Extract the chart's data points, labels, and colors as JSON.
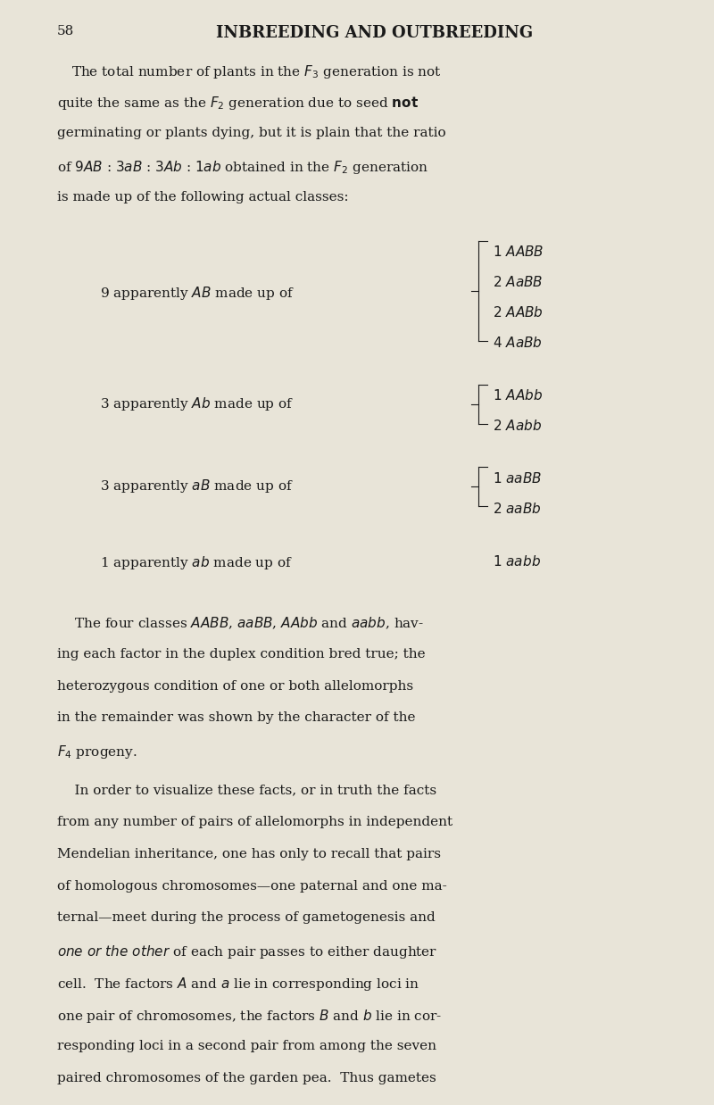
{
  "bg_color": "#e8e4d8",
  "page_number": "58",
  "header": "INBREEDING AND OUTBREEDING",
  "paragraph1": "The total number of plants in the $F_3$ generation is not\nquite the same as the $F_2$ generation due to seed not\ngerminating or plants dying, but it is plain that the ratio\nof $9AB$ : $3aB$ : $3Ab$ : $1ab$ obtained in the $F_2$ generation\nis made up of the following actual classes:",
  "table_rows": [
    {
      "left": "9 apparently $AB$ made up of",
      "brace": true,
      "right": [
        "1 $AABB$",
        "2 $AaBB$",
        "2 $AABb$",
        "4 $AaBb$"
      ]
    },
    {
      "left": "3 apparently $Ab$ made up of",
      "brace": true,
      "right": [
        "1 $AAbb$",
        "2 $Aabb$"
      ]
    },
    {
      "left": "3 apparently $aB$ made up of",
      "brace": true,
      "right": [
        "1 $aaBB$",
        "2 $aaBb$"
      ]
    },
    {
      "left": "1 apparently $ab$ made up of",
      "brace": false,
      "right": [
        "1 $aabb$"
      ]
    }
  ],
  "paragraph2": "The four classes $AABB$, $aaBB$, $AAbb$ and $aabb$, hav-\ning each factor in the duplex condition bred true; the\nheterozygous condition of one or both allelomorphs\nin the remainder was shown by the character of the\n$F_4$ progeny.",
  "paragraph3": "In order to visualize these facts, or in truth the facts\nfrom any number of pairs of allelomorphs in independent\nMendelian inheritance, one has only to recall that pairs\nof homologous chromosomes—one paternal and one ma-\nternal—meet during the process of gametogenesis and\n$one\\ or\\ the\\ other$ of each pair passes to either daughter\ncell.  The factors $A$ and $a$ lie in corresponding loci in\none pair of chromosomes, the factors $B$ and $b$ lie in cor-\nresponding loci in a second pair from among the seven\npaired chromosomes of the garden pea.  Thus gametes\nbearing the factors $AB$, $Ab$, $aB$ and $ab$ will be formed in",
  "text_color": "#1a1a1a",
  "font_size_header": 13,
  "font_size_body": 11,
  "font_size_pagenum": 11
}
